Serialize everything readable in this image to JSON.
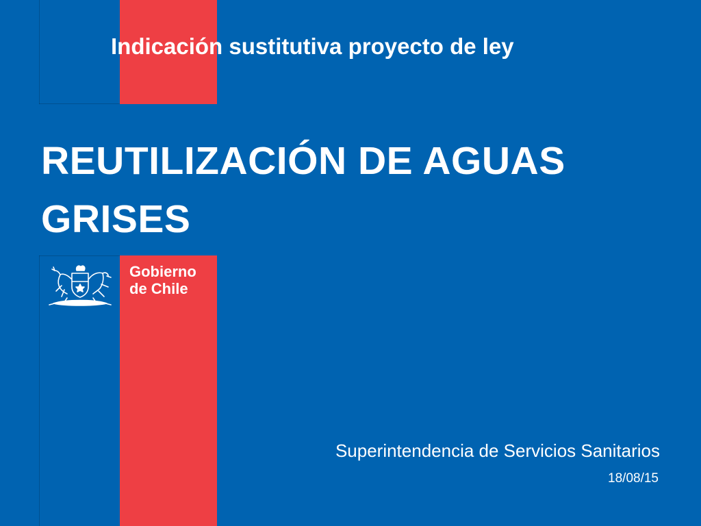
{
  "slide": {
    "subtitle": "Indicación sustitutiva proyecto de ley",
    "title_line1": "REUTILIZACIÓN DE AGUAS",
    "title_line2": "GRISES",
    "organization": "Superintendencia de Servicios Sanitarios",
    "date": "18/08/15"
  },
  "logo": {
    "line1": "Gobierno",
    "line2": "de Chile",
    "icon": "coat-of-arms-icon"
  },
  "colors": {
    "background": "#0063b1",
    "accent_red": "#ee3f44",
    "text": "#ffffff"
  }
}
